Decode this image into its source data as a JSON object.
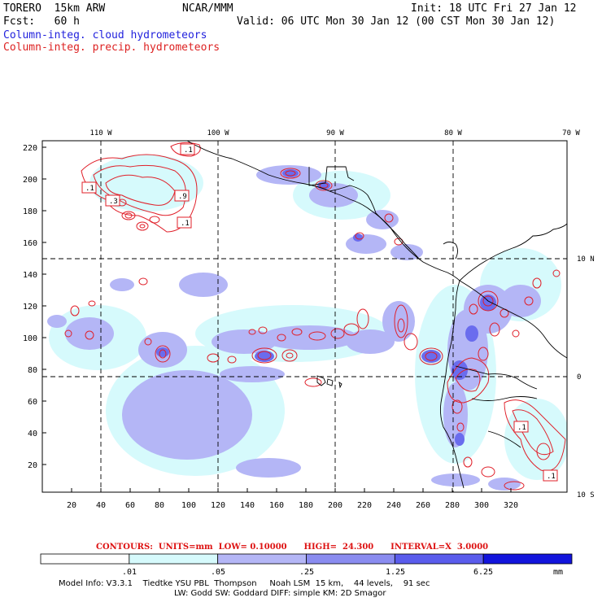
{
  "header": {
    "model": "TORERO  15km ARW",
    "center": "NCAR/MMM",
    "init": "Init: 18 UTC Fri 27 Jan 12",
    "fcst": "Fcst:   60 h",
    "valid": "Valid: 06 UTC Mon 30 Jan 12 (00 CST Mon 30 Jan 12)",
    "field1": "Column-integ. cloud hydrometeors",
    "field2": "Column-integ. precip. hydrometeors"
  },
  "map": {
    "top_lon_labels": [
      "110 W",
      "100 W",
      "90 W",
      "80 W",
      "70 W"
    ],
    "right_lat_labels": [
      "10 N",
      "0",
      "10 S"
    ],
    "x_ticks": [
      "20",
      "40",
      "60",
      "80",
      "100",
      "120",
      "140",
      "160",
      "180",
      "200",
      "220",
      "240",
      "260",
      "280",
      "300",
      "320"
    ],
    "y_ticks": [
      "220",
      "200",
      "180",
      "160",
      "140",
      "120",
      "100",
      "80",
      "60",
      "40",
      "20"
    ],
    "contour_box_labels": [
      ".1",
      ".1",
      ".3",
      ".9",
      ".1",
      ".1",
      ".1"
    ]
  },
  "contours_info": {
    "label": "CONTOURS:  UNITS=mm  LOW= 0.10000      HIGH=  24.300      INTERVAL=X  3.0000"
  },
  "colorbar": {
    "ticks": [
      ".01",
      ".05",
      ".25",
      "1.25",
      "6.25"
    ],
    "units": "mm",
    "colors": [
      "#ffffff",
      "#d6fafc",
      "#b4b6f6",
      "#8a8cf0",
      "#5a5cec",
      "#2c2ee6",
      "#1214dc"
    ]
  },
  "model_info": {
    "line1": "Model Info: V3.3.1    Tiedtke YSU PBL  Thompson     Noah LSM  15 km,    44 levels,    91 sec",
    "line2": "LW: Godd SW: Goddard DIFF: simple KM: 2D Smagor"
  }
}
